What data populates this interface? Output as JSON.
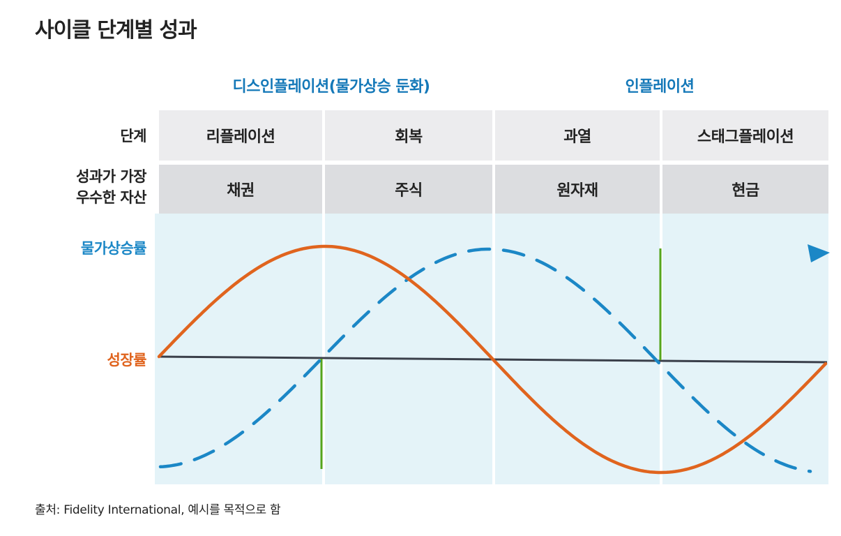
{
  "title": "사이클 단계별 성과",
  "phases": [
    {
      "label": "디스인플레이션(물가상승 둔화)"
    },
    {
      "label": "인플레이션"
    }
  ],
  "row_labels": {
    "stage": "단계",
    "best_asset": [
      "성과가 가장",
      "우수한 자산"
    ]
  },
  "stages": [
    {
      "stage": "리플레이션",
      "asset": "채권"
    },
    {
      "stage": "회복",
      "asset": "주식"
    },
    {
      "stage": "과열",
      "asset": "원자재"
    },
    {
      "stage": "스태그플레이션",
      "asset": "현금"
    }
  ],
  "curves": {
    "inflation": {
      "label": "물가상승률",
      "color": "#1b87c6",
      "style": "dashed"
    },
    "growth": {
      "label": "성장률",
      "color": "#e0641e",
      "style": "solid"
    }
  },
  "colors": {
    "phase_text": "#1478b8",
    "baseline": "#3a3f4a",
    "marker": "#55a51c",
    "chart_background": "#e4f3f8"
  },
  "source": "출처: Fidelity International, 예시를 목적으로 함"
}
